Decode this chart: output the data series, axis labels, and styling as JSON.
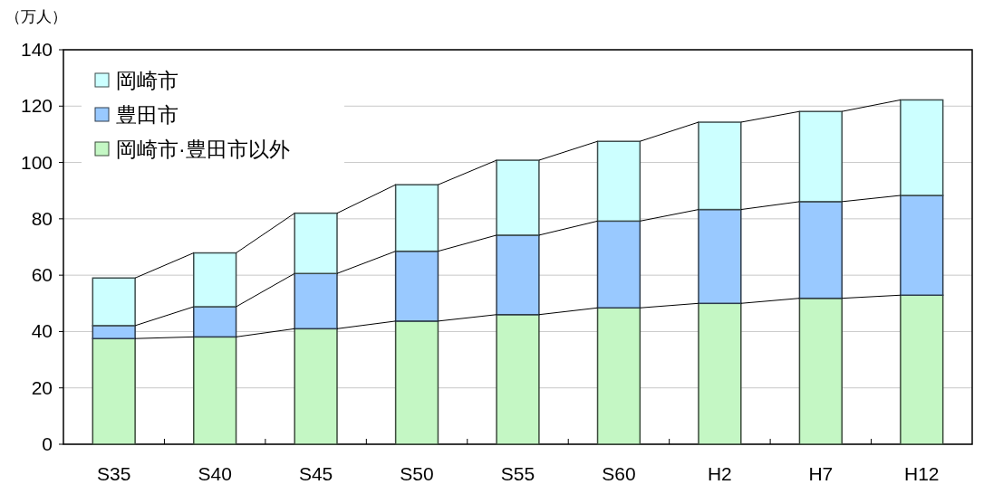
{
  "chart_data": {
    "type": "bar",
    "stacked": true,
    "ylabel": "（万人）",
    "categories": [
      "S35",
      "S40",
      "S45",
      "S50",
      "S55",
      "S60",
      "H2",
      "H7",
      "H12"
    ],
    "series": [
      {
        "name": "岡崎市·豊田市以外",
        "color": "#c4f7c4",
        "values": [
          37.5,
          38.1,
          41.0,
          43.7,
          46.0,
          48.4,
          50.0,
          51.8,
          52.9
        ]
      },
      {
        "name": "豊田市",
        "color": "#99c9ff",
        "values": [
          4.6,
          10.7,
          19.6,
          24.8,
          28.2,
          30.8,
          33.3,
          34.3,
          35.4
        ]
      },
      {
        "name": "岡崎市",
        "color": "#ccffff",
        "values": [
          16.9,
          19.1,
          21.4,
          23.6,
          26.6,
          28.3,
          31.0,
          32.0,
          33.9
        ]
      }
    ],
    "ylim": [
      0,
      140
    ],
    "yticks": [
      0,
      20,
      40,
      60,
      80,
      100,
      120,
      140
    ],
    "grid": "y",
    "legend": "top left"
  }
}
